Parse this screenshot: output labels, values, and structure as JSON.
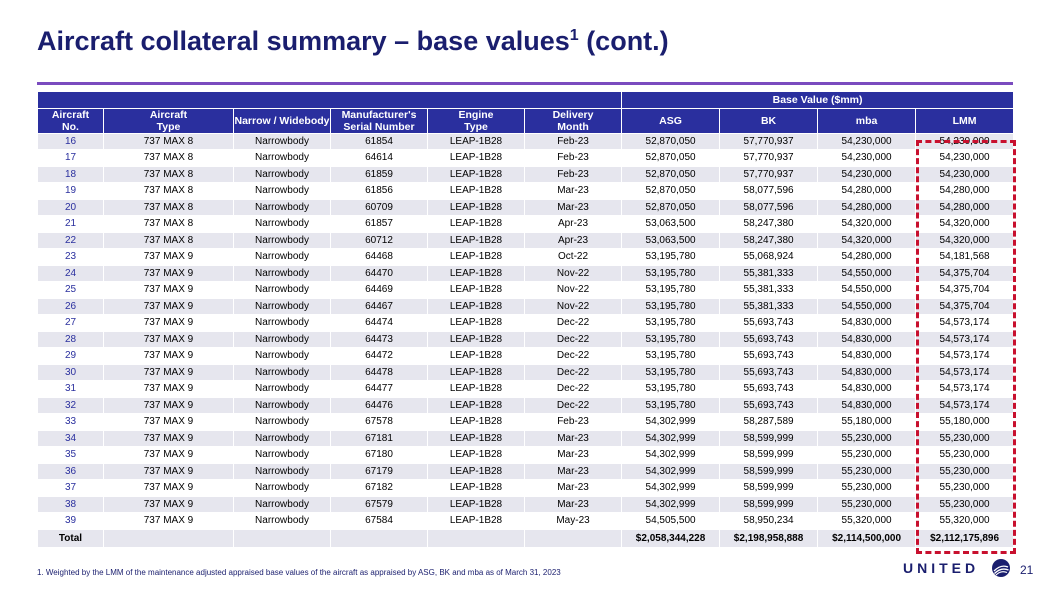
{
  "title": {
    "text": "Aircraft collateral summary – base values",
    "sup": "1",
    "suffix": " (cont.)"
  },
  "table": {
    "group_header": "Base Value ($mm)",
    "headers": {
      "no_a": "Aircraft",
      "no_b": "No.",
      "type_a": "Aircraft",
      "type_b": "Type",
      "body": "Narrow / Widebody",
      "msn_a": "Manufacturer's",
      "msn_b": "Serial Number",
      "engine_a": "Engine",
      "engine_b": "Type",
      "delivery_a": "Delivery",
      "delivery_b": "Month",
      "asg": "ASG",
      "bk": "BK",
      "mba": "mba",
      "lmm": "LMM"
    },
    "rows": [
      {
        "no": "16",
        "type": "737 MAX 8",
        "body": "Narrowbody",
        "msn": "61854",
        "engine": "LEAP-1B28",
        "delivery": "Feb-23",
        "asg": "52,870,050",
        "bk": "57,770,937",
        "mba": "54,230,000",
        "lmm": "54,230,000"
      },
      {
        "no": "17",
        "type": "737 MAX 8",
        "body": "Narrowbody",
        "msn": "64614",
        "engine": "LEAP-1B28",
        "delivery": "Feb-23",
        "asg": "52,870,050",
        "bk": "57,770,937",
        "mba": "54,230,000",
        "lmm": "54,230,000"
      },
      {
        "no": "18",
        "type": "737 MAX 8",
        "body": "Narrowbody",
        "msn": "61859",
        "engine": "LEAP-1B28",
        "delivery": "Feb-23",
        "asg": "52,870,050",
        "bk": "57,770,937",
        "mba": "54,230,000",
        "lmm": "54,230,000"
      },
      {
        "no": "19",
        "type": "737 MAX 8",
        "body": "Narrowbody",
        "msn": "61856",
        "engine": "LEAP-1B28",
        "delivery": "Mar-23",
        "asg": "52,870,050",
        "bk": "58,077,596",
        "mba": "54,280,000",
        "lmm": "54,280,000"
      },
      {
        "no": "20",
        "type": "737 MAX 8",
        "body": "Narrowbody",
        "msn": "60709",
        "engine": "LEAP-1B28",
        "delivery": "Mar-23",
        "asg": "52,870,050",
        "bk": "58,077,596",
        "mba": "54,280,000",
        "lmm": "54,280,000"
      },
      {
        "no": "21",
        "type": "737 MAX 8",
        "body": "Narrowbody",
        "msn": "61857",
        "engine": "LEAP-1B28",
        "delivery": "Apr-23",
        "asg": "53,063,500",
        "bk": "58,247,380",
        "mba": "54,320,000",
        "lmm": "54,320,000"
      },
      {
        "no": "22",
        "type": "737 MAX 8",
        "body": "Narrowbody",
        "msn": "60712",
        "engine": "LEAP-1B28",
        "delivery": "Apr-23",
        "asg": "53,063,500",
        "bk": "58,247,380",
        "mba": "54,320,000",
        "lmm": "54,320,000"
      },
      {
        "no": "23",
        "type": "737 MAX 9",
        "body": "Narrowbody",
        "msn": "64468",
        "engine": "LEAP-1B28",
        "delivery": "Oct-22",
        "asg": "53,195,780",
        "bk": "55,068,924",
        "mba": "54,280,000",
        "lmm": "54,181,568"
      },
      {
        "no": "24",
        "type": "737 MAX 9",
        "body": "Narrowbody",
        "msn": "64470",
        "engine": "LEAP-1B28",
        "delivery": "Nov-22",
        "asg": "53,195,780",
        "bk": "55,381,333",
        "mba": "54,550,000",
        "lmm": "54,375,704"
      },
      {
        "no": "25",
        "type": "737 MAX 9",
        "body": "Narrowbody",
        "msn": "64469",
        "engine": "LEAP-1B28",
        "delivery": "Nov-22",
        "asg": "53,195,780",
        "bk": "55,381,333",
        "mba": "54,550,000",
        "lmm": "54,375,704"
      },
      {
        "no": "26",
        "type": "737 MAX 9",
        "body": "Narrowbody",
        "msn": "64467",
        "engine": "LEAP-1B28",
        "delivery": "Nov-22",
        "asg": "53,195,780",
        "bk": "55,381,333",
        "mba": "54,550,000",
        "lmm": "54,375,704"
      },
      {
        "no": "27",
        "type": "737 MAX 9",
        "body": "Narrowbody",
        "msn": "64474",
        "engine": "LEAP-1B28",
        "delivery": "Dec-22",
        "asg": "53,195,780",
        "bk": "55,693,743",
        "mba": "54,830,000",
        "lmm": "54,573,174"
      },
      {
        "no": "28",
        "type": "737 MAX 9",
        "body": "Narrowbody",
        "msn": "64473",
        "engine": "LEAP-1B28",
        "delivery": "Dec-22",
        "asg": "53,195,780",
        "bk": "55,693,743",
        "mba": "54,830,000",
        "lmm": "54,573,174"
      },
      {
        "no": "29",
        "type": "737 MAX 9",
        "body": "Narrowbody",
        "msn": "64472",
        "engine": "LEAP-1B28",
        "delivery": "Dec-22",
        "asg": "53,195,780",
        "bk": "55,693,743",
        "mba": "54,830,000",
        "lmm": "54,573,174"
      },
      {
        "no": "30",
        "type": "737 MAX 9",
        "body": "Narrowbody",
        "msn": "64478",
        "engine": "LEAP-1B28",
        "delivery": "Dec-22",
        "asg": "53,195,780",
        "bk": "55,693,743",
        "mba": "54,830,000",
        "lmm": "54,573,174"
      },
      {
        "no": "31",
        "type": "737 MAX 9",
        "body": "Narrowbody",
        "msn": "64477",
        "engine": "LEAP-1B28",
        "delivery": "Dec-22",
        "asg": "53,195,780",
        "bk": "55,693,743",
        "mba": "54,830,000",
        "lmm": "54,573,174"
      },
      {
        "no": "32",
        "type": "737 MAX 9",
        "body": "Narrowbody",
        "msn": "64476",
        "engine": "LEAP-1B28",
        "delivery": "Dec-22",
        "asg": "53,195,780",
        "bk": "55,693,743",
        "mba": "54,830,000",
        "lmm": "54,573,174"
      },
      {
        "no": "33",
        "type": "737 MAX 9",
        "body": "Narrowbody",
        "msn": "67578",
        "engine": "LEAP-1B28",
        "delivery": "Feb-23",
        "asg": "54,302,999",
        "bk": "58,287,589",
        "mba": "55,180,000",
        "lmm": "55,180,000"
      },
      {
        "no": "34",
        "type": "737 MAX 9",
        "body": "Narrowbody",
        "msn": "67181",
        "engine": "LEAP-1B28",
        "delivery": "Mar-23",
        "asg": "54,302,999",
        "bk": "58,599,999",
        "mba": "55,230,000",
        "lmm": "55,230,000"
      },
      {
        "no": "35",
        "type": "737 MAX 9",
        "body": "Narrowbody",
        "msn": "67180",
        "engine": "LEAP-1B28",
        "delivery": "Mar-23",
        "asg": "54,302,999",
        "bk": "58,599,999",
        "mba": "55,230,000",
        "lmm": "55,230,000"
      },
      {
        "no": "36",
        "type": "737 MAX 9",
        "body": "Narrowbody",
        "msn": "67179",
        "engine": "LEAP-1B28",
        "delivery": "Mar-23",
        "asg": "54,302,999",
        "bk": "58,599,999",
        "mba": "55,230,000",
        "lmm": "55,230,000"
      },
      {
        "no": "37",
        "type": "737 MAX 9",
        "body": "Narrowbody",
        "msn": "67182",
        "engine": "LEAP-1B28",
        "delivery": "Mar-23",
        "asg": "54,302,999",
        "bk": "58,599,999",
        "mba": "55,230,000",
        "lmm": "55,230,000"
      },
      {
        "no": "38",
        "type": "737 MAX 9",
        "body": "Narrowbody",
        "msn": "67579",
        "engine": "LEAP-1B28",
        "delivery": "Mar-23",
        "asg": "54,302,999",
        "bk": "58,599,999",
        "mba": "55,230,000",
        "lmm": "55,230,000"
      },
      {
        "no": "39",
        "type": "737 MAX 9",
        "body": "Narrowbody",
        "msn": "67584",
        "engine": "LEAP-1B28",
        "delivery": "May-23",
        "asg": "54,505,500",
        "bk": "58,950,234",
        "mba": "55,320,000",
        "lmm": "55,320,000"
      }
    ],
    "total": {
      "label": "Total",
      "asg": "$2,058,344,228",
      "bk": "$2,198,958,888",
      "mba": "$2,114,500,000",
      "lmm": "$2,112,175,896"
    }
  },
  "footnote": "1. Weighted by the LMM of the maintenance adjusted appraised base values of the aircraft as appraised by ASG, BK and mba as of March 31, 2023",
  "brand": {
    "name": "UNITED",
    "icon": "globe-icon"
  },
  "page_number": "21",
  "colors": {
    "title": "#1a1e6e",
    "header": "#2a2f9e",
    "rule": "#7a4bbf",
    "highlight": "#c8102e",
    "stripe": "#e6e6ee"
  }
}
